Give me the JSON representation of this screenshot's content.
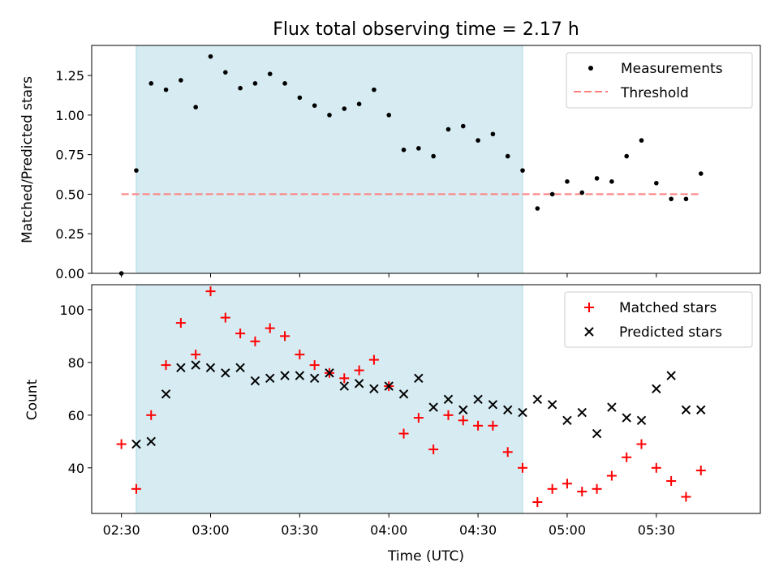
{
  "chart_data": {
    "title": "Flux total observing time = 2.17 h",
    "xlabel": "Time (UTC)",
    "x_ticks": [
      "02:30",
      "03:00",
      "03:30",
      "04:00",
      "04:30",
      "05:00",
      "05:30"
    ],
    "x_tick_minutes": [
      150,
      180,
      210,
      240,
      270,
      300,
      330
    ],
    "x_range_minutes": [
      140,
      365
    ],
    "shaded_interval_minutes": [
      155,
      285
    ],
    "shade_color": "#add8e6",
    "top": {
      "type": "scatter",
      "ylabel": "Matched/Predicted stars",
      "ylim": [
        0,
        1.44
      ],
      "y_ticks": [
        "0.00",
        "0.25",
        "0.50",
        "0.75",
        "1.00",
        "1.25"
      ],
      "threshold": 0.5,
      "threshold_x_minutes": [
        150,
        345
      ],
      "legend": {
        "measurements": "Measurements",
        "threshold": "Threshold"
      },
      "series": [
        {
          "name": "Measurements",
          "x_minutes": [
            150,
            155,
            160,
            165,
            170,
            175,
            180,
            185,
            190,
            195,
            200,
            205,
            210,
            215,
            220,
            225,
            230,
            235,
            240,
            245,
            250,
            255,
            260,
            265,
            270,
            275,
            280,
            285,
            290,
            295,
            300,
            305,
            310,
            315,
            320,
            325,
            330,
            335,
            340,
            345
          ],
          "values": [
            0.0,
            0.65,
            1.2,
            1.16,
            1.22,
            1.05,
            1.37,
            1.27,
            1.17,
            1.2,
            1.26,
            1.2,
            1.11,
            1.06,
            1.0,
            1.04,
            1.07,
            1.16,
            1.0,
            0.78,
            0.79,
            0.74,
            0.91,
            0.93,
            0.84,
            0.88,
            0.74,
            0.65,
            0.41,
            0.5,
            0.58,
            0.51,
            0.6,
            0.58,
            0.74,
            0.84,
            0.57,
            0.47,
            0.47,
            0.63
          ],
          "color": "#000000"
        }
      ],
      "threshold_color": "#ff7f7f"
    },
    "bottom": {
      "type": "scatter",
      "ylabel": "Count",
      "ylim": [
        22.7,
        109.5
      ],
      "y_ticks": [
        "40",
        "60",
        "80",
        "100"
      ],
      "legend": {
        "matched": "Matched stars",
        "predicted": "Predicted stars"
      },
      "series": [
        {
          "name": "Matched stars",
          "marker": "+",
          "color": "#ff0000",
          "x_minutes": [
            150,
            155,
            160,
            165,
            170,
            175,
            180,
            185,
            190,
            195,
            200,
            205,
            210,
            215,
            220,
            225,
            230,
            235,
            240,
            245,
            250,
            255,
            260,
            265,
            270,
            275,
            280,
            285,
            290,
            295,
            300,
            305,
            310,
            315,
            320,
            325,
            330,
            335,
            340,
            345
          ],
          "values": [
            49,
            32,
            60,
            79,
            95,
            83,
            107,
            97,
            91,
            88,
            93,
            90,
            83,
            79,
            76,
            74,
            77,
            81,
            71,
            53,
            59,
            47,
            60,
            58,
            56,
            56,
            46,
            40,
            27,
            32,
            34,
            31,
            32,
            37,
            44,
            49,
            40,
            35,
            29,
            39
          ]
        },
        {
          "name": "Predicted stars",
          "marker": "x",
          "color": "#000000",
          "x_minutes": [
            155,
            160,
            165,
            170,
            175,
            180,
            185,
            190,
            195,
            200,
            205,
            210,
            215,
            220,
            225,
            230,
            235,
            240,
            245,
            250,
            255,
            260,
            265,
            270,
            275,
            280,
            285,
            290,
            295,
            300,
            305,
            310,
            315,
            320,
            325,
            330,
            335,
            340,
            345
          ],
          "values": [
            49,
            50,
            68,
            78,
            79,
            78,
            76,
            78,
            73,
            74,
            75,
            75,
            74,
            76,
            71,
            72,
            70,
            71,
            68,
            74,
            63,
            66,
            62,
            66,
            64,
            62,
            61,
            66,
            64,
            58,
            61,
            53,
            63,
            59,
            58,
            70,
            75,
            62,
            62
          ]
        }
      ]
    }
  }
}
